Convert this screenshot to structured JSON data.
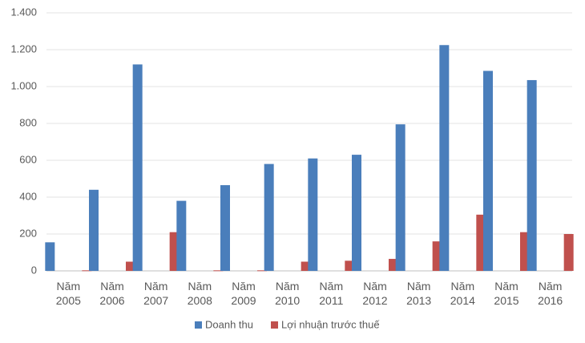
{
  "chart_data": {
    "type": "bar",
    "categories": [
      "Năm 2005",
      "Năm 2006",
      "Năm 2007",
      "Năm 2008",
      "Năm 2009",
      "Năm 2010",
      "Năm 2011",
      "Năm 2012",
      "Năm 2013",
      "Năm 2014",
      "Năm 2015",
      "Năm 2016"
    ],
    "series": [
      {
        "name": "Doanh thu",
        "color": "#4a7ebb",
        "values": [
          155,
          440,
          1120,
          380,
          465,
          580,
          610,
          630,
          795,
          1225,
          1085,
          1035
        ]
      },
      {
        "name": "Lợi nhuận trước thuế",
        "color": "#c0504d",
        "values": [
          3,
          50,
          210,
          3,
          3,
          50,
          55,
          65,
          160,
          305,
          210,
          200
        ]
      }
    ],
    "ylim": [
      0,
      1400
    ],
    "yticks": [
      0,
      200,
      400,
      600,
      800,
      {
        "value": 1000,
        "label": "1.000"
      },
      {
        "value": 1200,
        "label": "1.200"
      },
      {
        "value": 1400,
        "label": "1.400"
      }
    ],
    "grid": true,
    "legend": "bottom"
  }
}
